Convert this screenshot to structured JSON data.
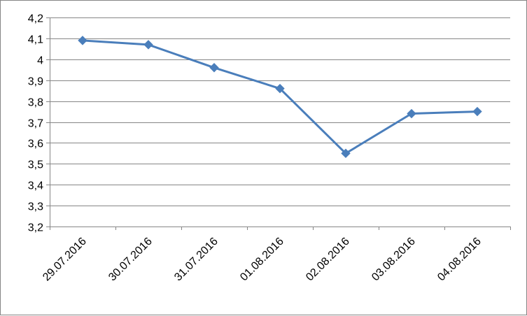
{
  "chart_data": {
    "type": "line",
    "categories": [
      "29.07.2016",
      "30.07.2016",
      "31.07.2016",
      "01.08.2016",
      "02.08.2016",
      "03.08.2016",
      "04.08.2016"
    ],
    "series": [
      {
        "values": [
          4.09,
          4.07,
          3.96,
          3.86,
          3.55,
          3.74,
          3.75
        ],
        "color": "#4a7ebb",
        "marker": "diamond"
      }
    ],
    "y_ticks": [
      "3,2",
      "3,3",
      "3,4",
      "3,5",
      "3,6",
      "3,7",
      "3,8",
      "3,9",
      "4",
      "4,1",
      "4,2"
    ],
    "ylim": [
      3.2,
      4.2
    ],
    "grid": true,
    "legend": "none",
    "gridline_color": "#868686"
  }
}
